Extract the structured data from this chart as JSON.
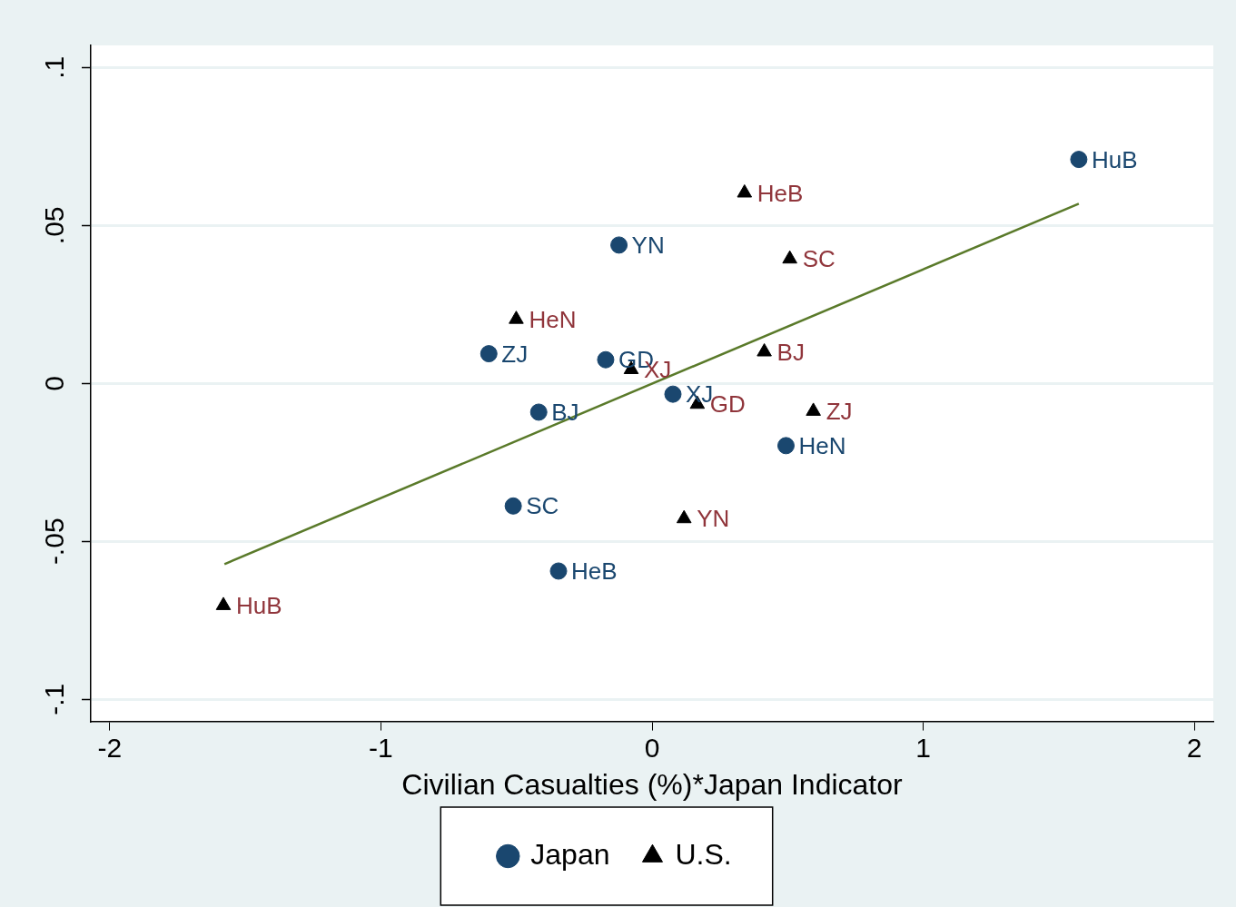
{
  "chart_data": {
    "type": "scatter",
    "xlabel": "Civilian Casualties (%)*Japan Indicator",
    "xlim": [
      -2.07,
      2.07
    ],
    "xticks": [
      -2,
      -1,
      0,
      1,
      2
    ],
    "ylim": [
      -0.107,
      0.107
    ],
    "yticks": [
      {
        "value": -0.1,
        "label": "-.1"
      },
      {
        "value": -0.05,
        "label": "-.05"
      },
      {
        "value": 0,
        "label": "0"
      },
      {
        "value": 0.05,
        "label": ".05"
      },
      {
        "value": 0.1,
        "label": ".1"
      }
    ],
    "grid": "y",
    "legend": "bottom",
    "series": [
      {
        "name": "Japan",
        "color": "#1a476f",
        "marker": "circle",
        "x": [
          1.574,
          -0.122,
          -0.602,
          -0.171,
          -0.418,
          0.077,
          0.494,
          -0.512,
          -0.345
        ],
        "values": [
          0.0709,
          0.0438,
          0.0094,
          0.0075,
          -0.0091,
          -0.0034,
          -0.0197,
          -0.0388,
          -0.0594
        ],
        "value_labels": [
          "HuB",
          "YN",
          "ZJ",
          "GD",
          "BJ",
          "XJ",
          "HeN",
          "SC",
          "HeB"
        ]
      },
      {
        "name": "U.S.",
        "color": "#000000",
        "marker": "triangle",
        "x": [
          0.341,
          0.508,
          -0.501,
          0.414,
          -0.077,
          0.167,
          0.595,
          0.118,
          -1.581
        ],
        "values": [
          0.0603,
          0.0394,
          0.0203,
          0.01,
          0.0044,
          -0.0066,
          -0.0088,
          -0.0428,
          -0.0703
        ],
        "value_labels": [
          "HeB",
          "SC",
          "HeN",
          "BJ",
          "XJ",
          "GD",
          "ZJ",
          "YN",
          "HuB"
        ]
      },
      {
        "type": "line",
        "color": "#5a7a2a",
        "marker": "none",
        "x": [
          -1.577,
          1.574
        ],
        "values": [
          -0.0572,
          0.0569
        ]
      }
    ]
  }
}
